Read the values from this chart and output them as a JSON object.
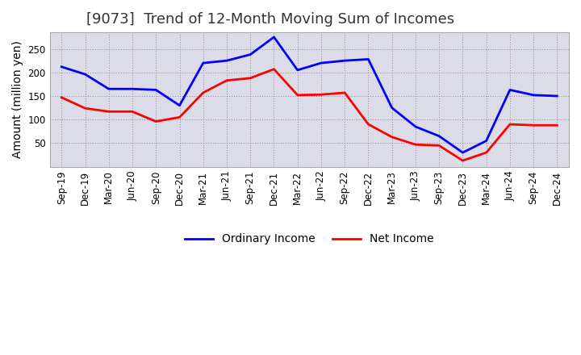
{
  "title": "[9073]  Trend of 12-Month Moving Sum of Incomes",
  "ylabel": "Amount (million yen)",
  "x_labels": [
    "Sep-19",
    "Dec-19",
    "Mar-20",
    "Jun-20",
    "Sep-20",
    "Dec-20",
    "Mar-21",
    "Jun-21",
    "Sep-21",
    "Dec-21",
    "Mar-22",
    "Jun-22",
    "Sep-22",
    "Dec-22",
    "Mar-23",
    "Jun-23",
    "Sep-23",
    "Dec-23",
    "Mar-24",
    "Jun-24",
    "Sep-24",
    "Dec-24"
  ],
  "ordinary_income": [
    212,
    196,
    165,
    165,
    163,
    130,
    220,
    225,
    238,
    275,
    205,
    220,
    225,
    228,
    125,
    85,
    65,
    30,
    55,
    163,
    152,
    150
  ],
  "net_income": [
    147,
    124,
    117,
    117,
    96,
    105,
    157,
    183,
    188,
    207,
    152,
    153,
    157,
    90,
    63,
    47,
    45,
    13,
    30,
    90,
    88,
    88
  ],
  "ordinary_color": "#0000FF",
  "net_color": "#FF0000",
  "ylim": [
    0,
    285
  ],
  "yticks": [
    50,
    100,
    150,
    200,
    250
  ],
  "background_color": "#FFFFFF",
  "plot_bg_color": "#DCDCE8",
  "grid_color": "#AAAAAA",
  "title_fontsize": 13,
  "axis_label_fontsize": 10,
  "tick_fontsize": 8.5,
  "legend_fontsize": 10
}
